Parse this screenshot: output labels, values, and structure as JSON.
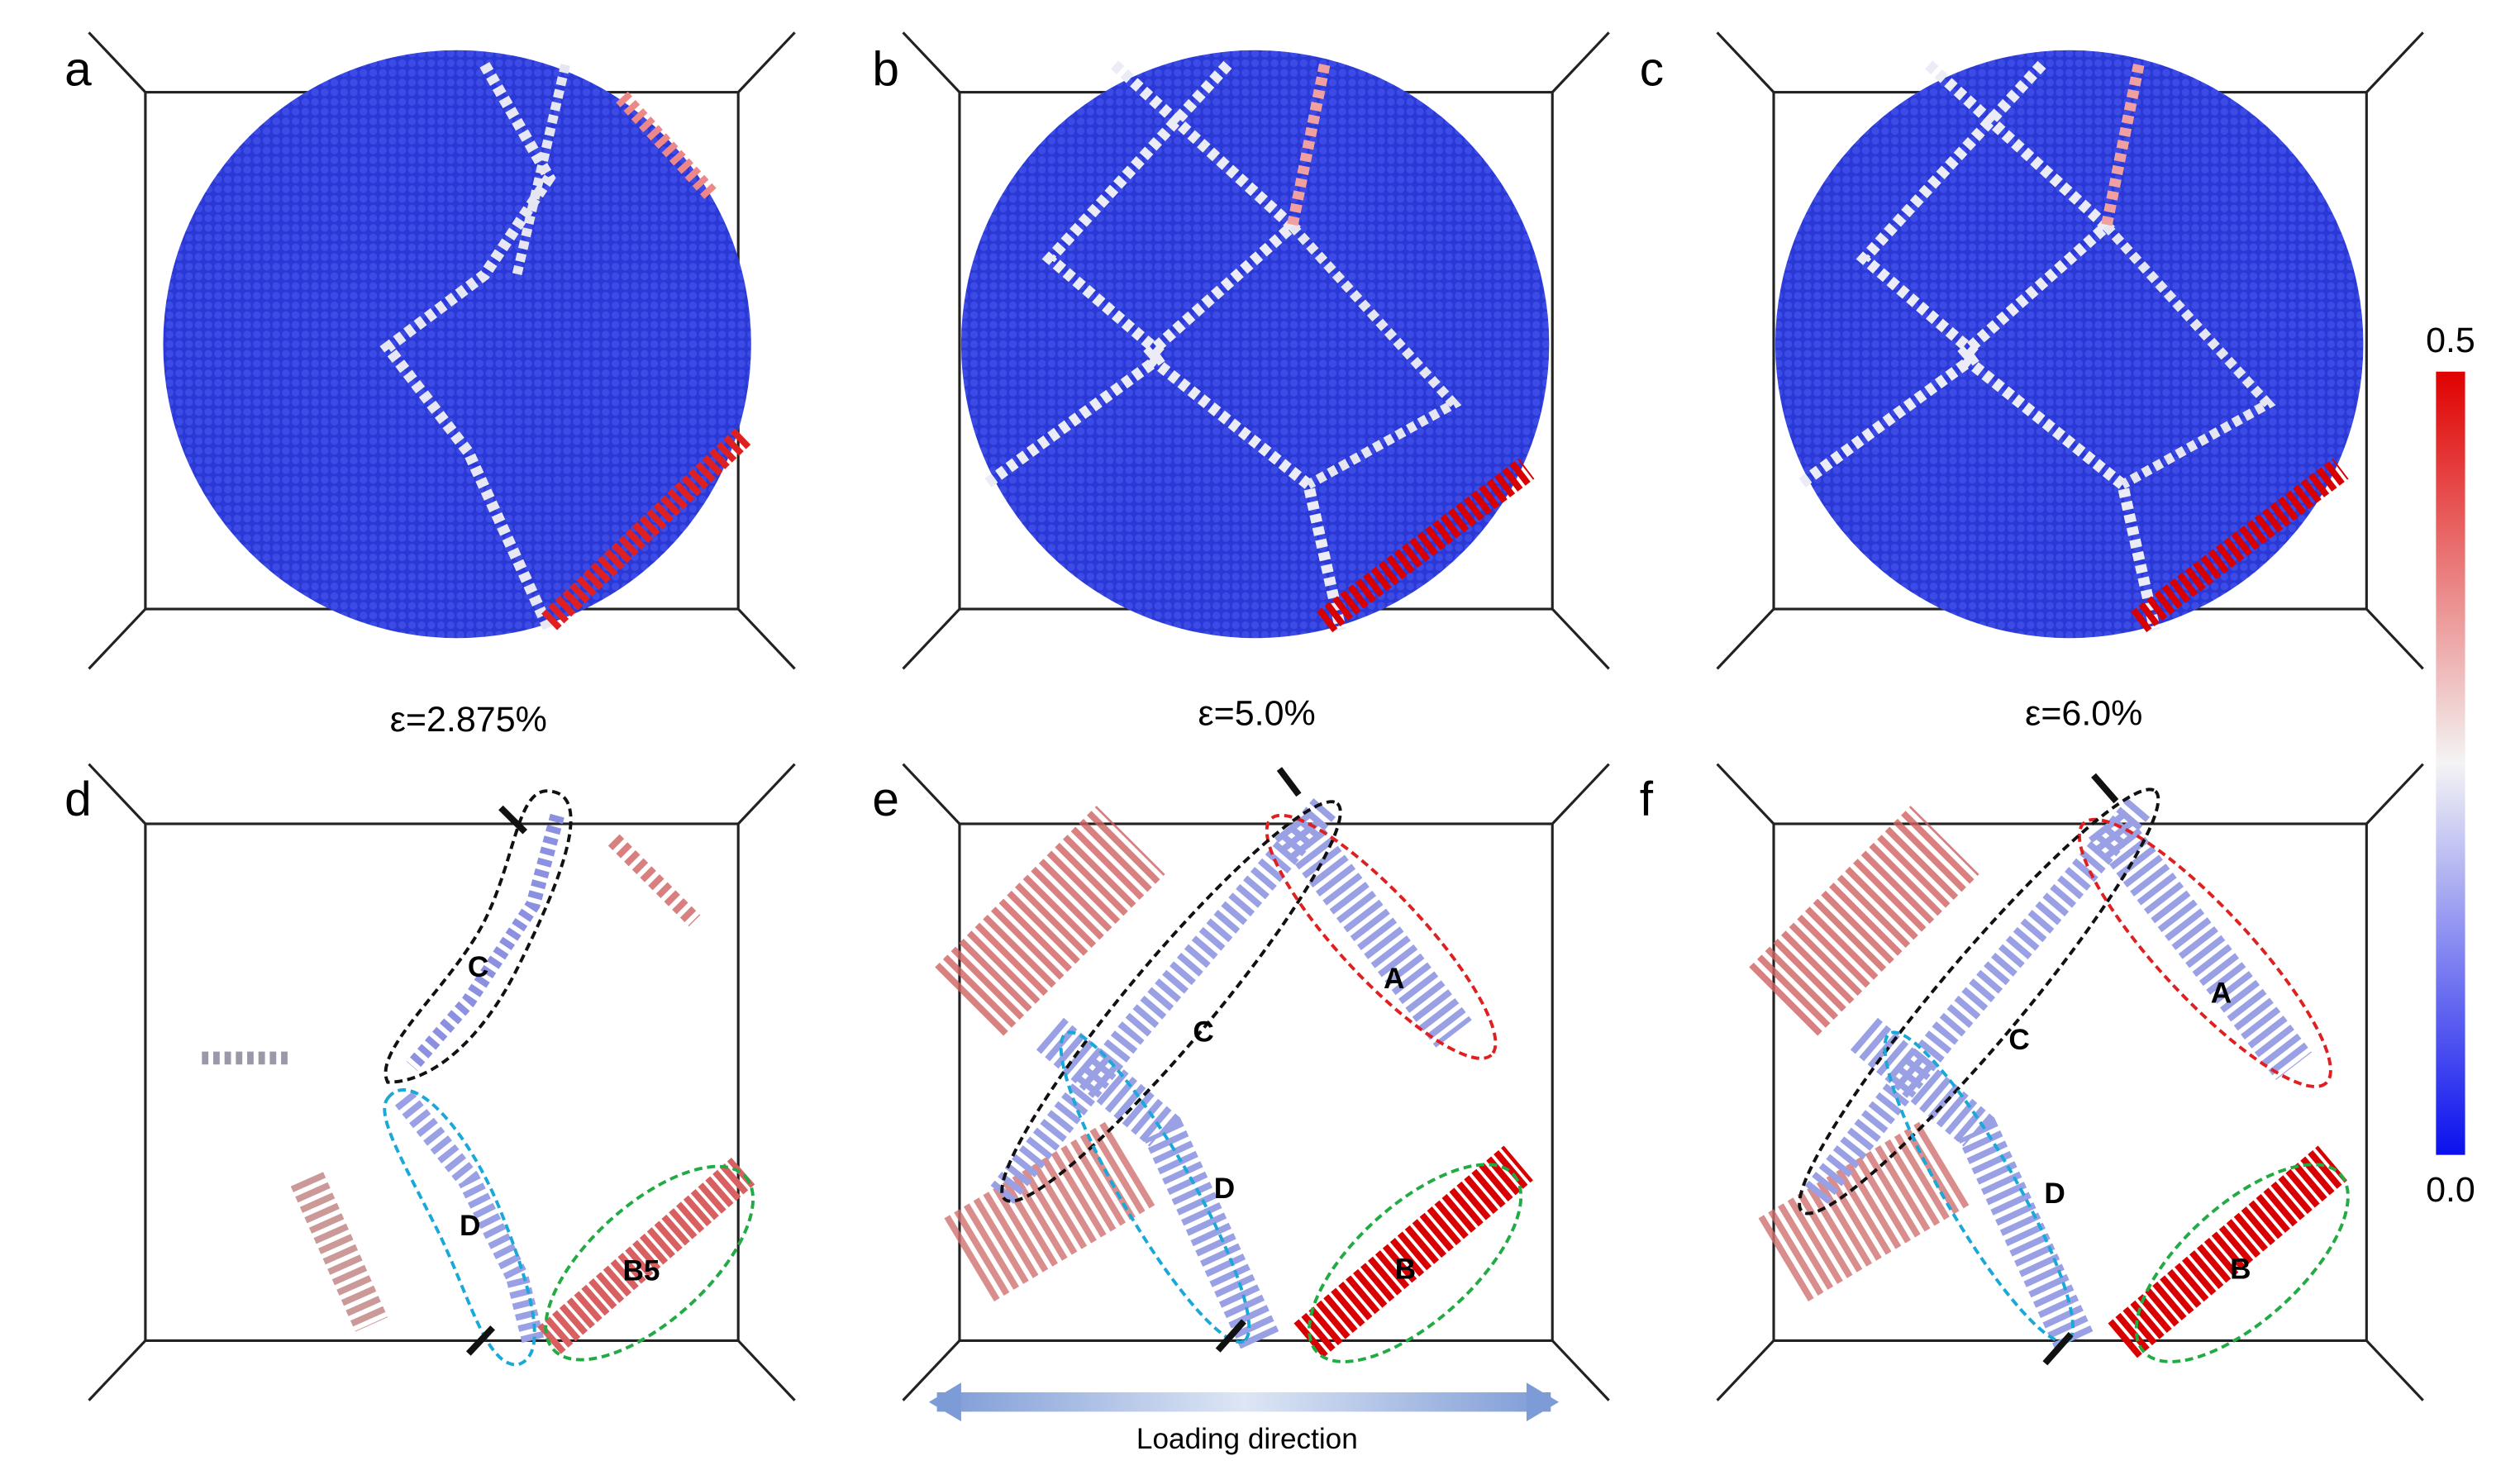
{
  "panels": [
    {
      "label": "a"
    },
    {
      "label": "b"
    },
    {
      "label": "c"
    },
    {
      "label": "d"
    },
    {
      "label": "e"
    },
    {
      "label": "f"
    }
  ],
  "strain_labels": [
    "ε=2.875%",
    "ε=5.0%",
    "ε=6.0%"
  ],
  "region_labels": {
    "d": [
      "C",
      "D",
      "B5"
    ],
    "e": [
      "A",
      "C",
      "D",
      "B"
    ],
    "f": [
      "A",
      "C",
      "D",
      "B"
    ]
  },
  "colorbar": {
    "max": "0.5",
    "min": "0.0"
  },
  "loading_direction": "Loading direction"
}
